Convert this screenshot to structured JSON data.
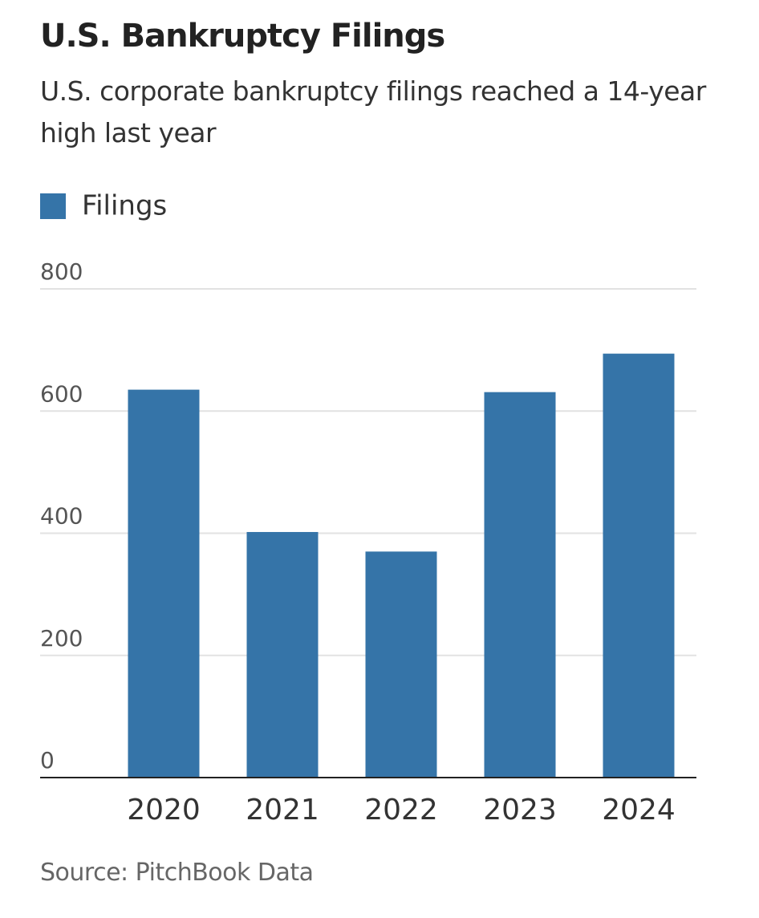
{
  "chart_data": {
    "type": "bar",
    "title": "U.S. Bankruptcy Filings",
    "subtitle": "U.S. corporate bankruptcy filings reached a 14-year high last year",
    "series": [
      {
        "name": "Filings",
        "color": "#3574a8",
        "values": [
          635,
          402,
          370,
          631,
          694
        ]
      }
    ],
    "categories": [
      "2020",
      "2021",
      "2022",
      "2023",
      "2024"
    ],
    "ylim": [
      0,
      800
    ],
    "yticks": [
      0,
      200,
      400,
      600,
      800
    ],
    "grid": true,
    "legend": "top-left",
    "source": "Source: PitchBook Data"
  }
}
